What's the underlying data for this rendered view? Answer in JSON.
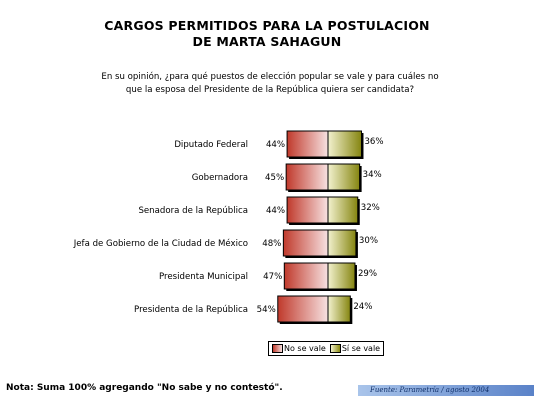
{
  "header": {
    "title_line1": "CARGOS PERMITIDOS PARA LA POSTULACION",
    "title_line2": "DE MARTA SAHAGUN",
    "question_line1": "En su opinión, ¿para qué puestos de elección popular se vale y para cuáles no",
    "question_line2": "que la esposa del Presidente de la República quiera ser candidata?"
  },
  "chart_data": {
    "type": "bar",
    "orientation": "horizontal-diverging",
    "categories": [
      "Diputado Federal",
      "Gobernadora",
      "Senadora de la República",
      "Jefa de Gobierno de la Ciudad de México",
      "Presidenta Municipal",
      "Presidenta de la República"
    ],
    "series": [
      {
        "name": "No se vale",
        "values": [
          44,
          45,
          44,
          48,
          47,
          54
        ],
        "color": "#c0392b"
      },
      {
        "name": "Sí se vale",
        "values": [
          36,
          34,
          32,
          30,
          29,
          24
        ],
        "color": "#8a8a10"
      }
    ],
    "value_labels": {
      "no": [
        "44%",
        "45%",
        "44%",
        "48%",
        "47%",
        "54%"
      ],
      "si": [
        "36%",
        "34%",
        "32%",
        "30%",
        "29%",
        "24%"
      ]
    },
    "legend_placement": "bottom",
    "grid": false
  },
  "footer": {
    "note": "Nota: Suma 100% agregando \"No sabe y no contestó\".",
    "source": "Fuente: Parametría / agosto 2004"
  }
}
